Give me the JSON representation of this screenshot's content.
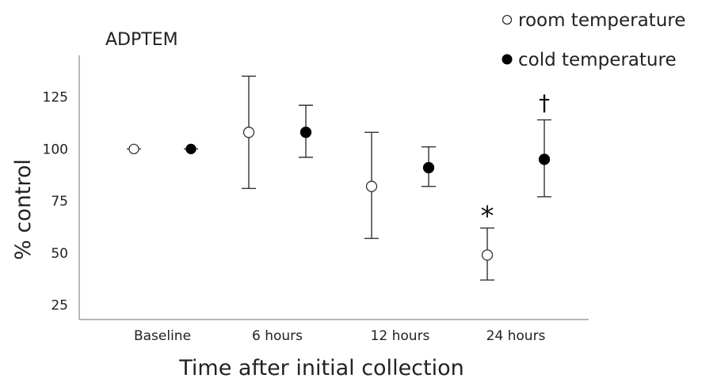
{
  "chart_data": {
    "type": "scatter",
    "title": "ADPTEM",
    "xlabel": "Time after initial collection",
    "ylabel": "% control",
    "categories": [
      "Baseline",
      "6 hours",
      "12 hours",
      "24 hours"
    ],
    "yticks": [
      "25",
      "50",
      "75",
      "100",
      "125"
    ],
    "ylim": [
      18,
      145
    ],
    "grid": false,
    "legend_position": "top-right",
    "series": [
      {
        "name": "room temperature",
        "marker": "open-circle",
        "color": "#ffffff",
        "values": [
          100,
          108,
          82,
          49
        ],
        "err_low": [
          100,
          81,
          57,
          37
        ],
        "err_high": [
          100,
          135,
          108,
          62
        ]
      },
      {
        "name": "cold temperature",
        "marker": "filled-circle",
        "color": "#000000",
        "values": [
          100,
          108,
          91,
          95
        ],
        "err_low": [
          100,
          96,
          82,
          77
        ],
        "err_high": [
          100,
          121,
          101,
          114
        ]
      }
    ],
    "annotations": [
      {
        "text": "*",
        "category": "24 hours",
        "series": "room temperature"
      },
      {
        "text": "†",
        "category": "24 hours",
        "series": "cold temperature"
      }
    ]
  }
}
